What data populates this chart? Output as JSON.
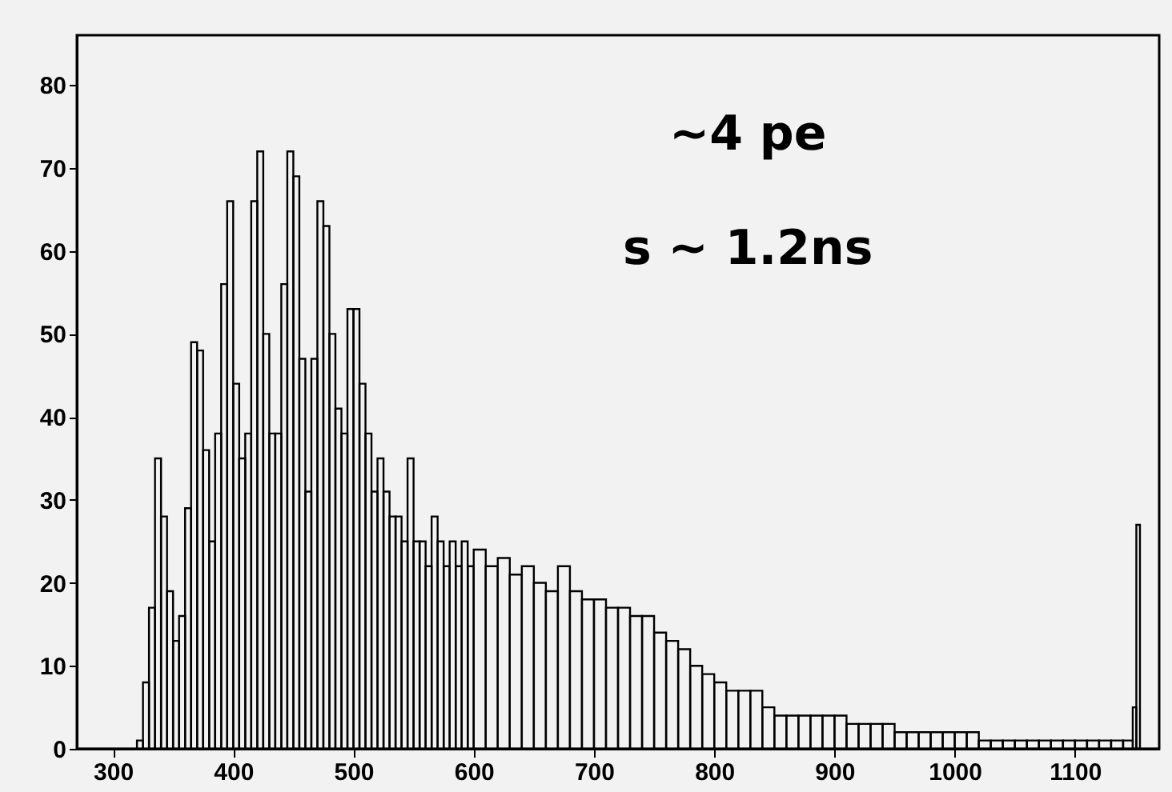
{
  "chart_data": {
    "type": "histogram",
    "annotations": [
      "~4 pe",
      "s ~ 1.2ns"
    ],
    "bins": [
      270,
      320,
      325,
      330,
      335,
      340,
      345,
      350,
      355,
      360,
      365,
      370,
      375,
      380,
      385,
      390,
      395,
      400,
      405,
      410,
      415,
      420,
      425,
      430,
      435,
      440,
      445,
      450,
      455,
      460,
      465,
      470,
      475,
      480,
      485,
      490,
      495,
      500,
      505,
      510,
      515,
      520,
      525,
      530,
      535,
      540,
      545,
      550,
      555,
      560,
      565,
      570,
      575,
      580,
      585,
      590,
      595,
      600,
      610,
      620,
      630,
      640,
      650,
      660,
      670,
      680,
      690,
      700,
      710,
      720,
      730,
      740,
      750,
      760,
      770,
      780,
      790,
      800,
      810,
      820,
      830,
      840,
      850,
      860,
      870,
      880,
      890,
      900,
      910,
      920,
      930,
      940,
      950,
      960,
      970,
      980,
      990,
      1000,
      1010,
      1020,
      1030,
      1040,
      1050,
      1060,
      1070,
      1080,
      1090,
      1100,
      1110,
      1120,
      1130,
      1140,
      1148,
      1151,
      1154,
      1170
    ],
    "values": [
      0,
      1,
      8,
      17,
      35,
      28,
      19,
      13,
      16,
      29,
      49,
      48,
      36,
      25,
      38,
      56,
      66,
      44,
      35,
      38,
      66,
      72,
      50,
      38,
      38,
      56,
      72,
      69,
      47,
      31,
      47,
      66,
      63,
      50,
      41,
      38,
      53,
      53,
      44,
      38,
      31,
      35,
      31,
      28,
      28,
      25,
      35,
      25,
      25,
      22,
      28,
      25,
      22,
      25,
      22,
      25,
      22,
      24,
      22,
      23,
      21,
      22,
      20,
      19,
      22,
      19,
      18,
      18,
      17,
      17,
      16,
      16,
      14,
      13,
      12,
      10,
      9,
      8,
      7,
      7,
      7,
      5,
      4,
      4,
      4,
      4,
      4,
      4,
      3,
      3,
      3,
      3,
      2,
      2,
      2,
      2,
      2,
      2,
      2,
      1,
      1,
      1,
      1,
      1,
      1,
      1,
      1,
      1,
      1,
      1,
      1,
      1,
      5,
      27,
      0
    ],
    "color": "#000000",
    "xlim": [
      270,
      1170
    ],
    "xticks": [
      300,
      400,
      500,
      600,
      700,
      800,
      900,
      1000,
      1100
    ],
    "ylim": [
      0,
      86
    ],
    "yticks": [
      0,
      10,
      20,
      30,
      40,
      50,
      60,
      70,
      80
    ],
    "grid": false
  }
}
